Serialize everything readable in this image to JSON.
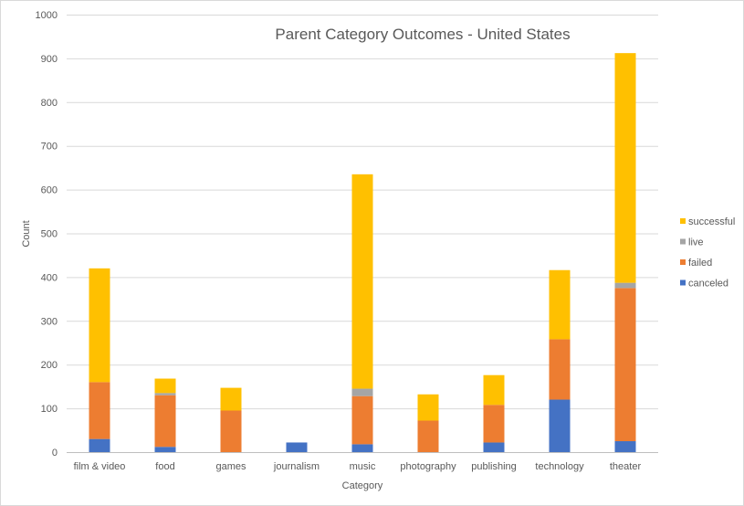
{
  "chart_data": {
    "type": "bar",
    "stacked": true,
    "title": "Parent Category Outcomes - United States",
    "xlabel": "Category",
    "ylabel": "Count",
    "ylim": [
      0,
      1000
    ],
    "yticks": [
      0,
      100,
      200,
      300,
      400,
      500,
      600,
      700,
      800,
      900,
      1000
    ],
    "grid": "horizontal",
    "legend_position": "right",
    "categories": [
      "film & video",
      "food",
      "games",
      "journalism",
      "music",
      "photography",
      "publishing",
      "technology",
      "theater"
    ],
    "series": [
      {
        "name": "canceled",
        "color": "#4472c4",
        "values": [
          30,
          12,
          0,
          22,
          18,
          0,
          22,
          120,
          25
        ]
      },
      {
        "name": "failed",
        "color": "#ed7d31",
        "values": [
          130,
          118,
          95,
          0,
          110,
          72,
          86,
          138,
          350
        ]
      },
      {
        "name": "live",
        "color": "#a5a5a5",
        "values": [
          0,
          5,
          0,
          0,
          17,
          0,
          0,
          0,
          12
        ]
      },
      {
        "name": "successful",
        "color": "#ffc000",
        "values": [
          260,
          33,
          52,
          0,
          490,
          60,
          68,
          158,
          525
        ]
      }
    ]
  }
}
